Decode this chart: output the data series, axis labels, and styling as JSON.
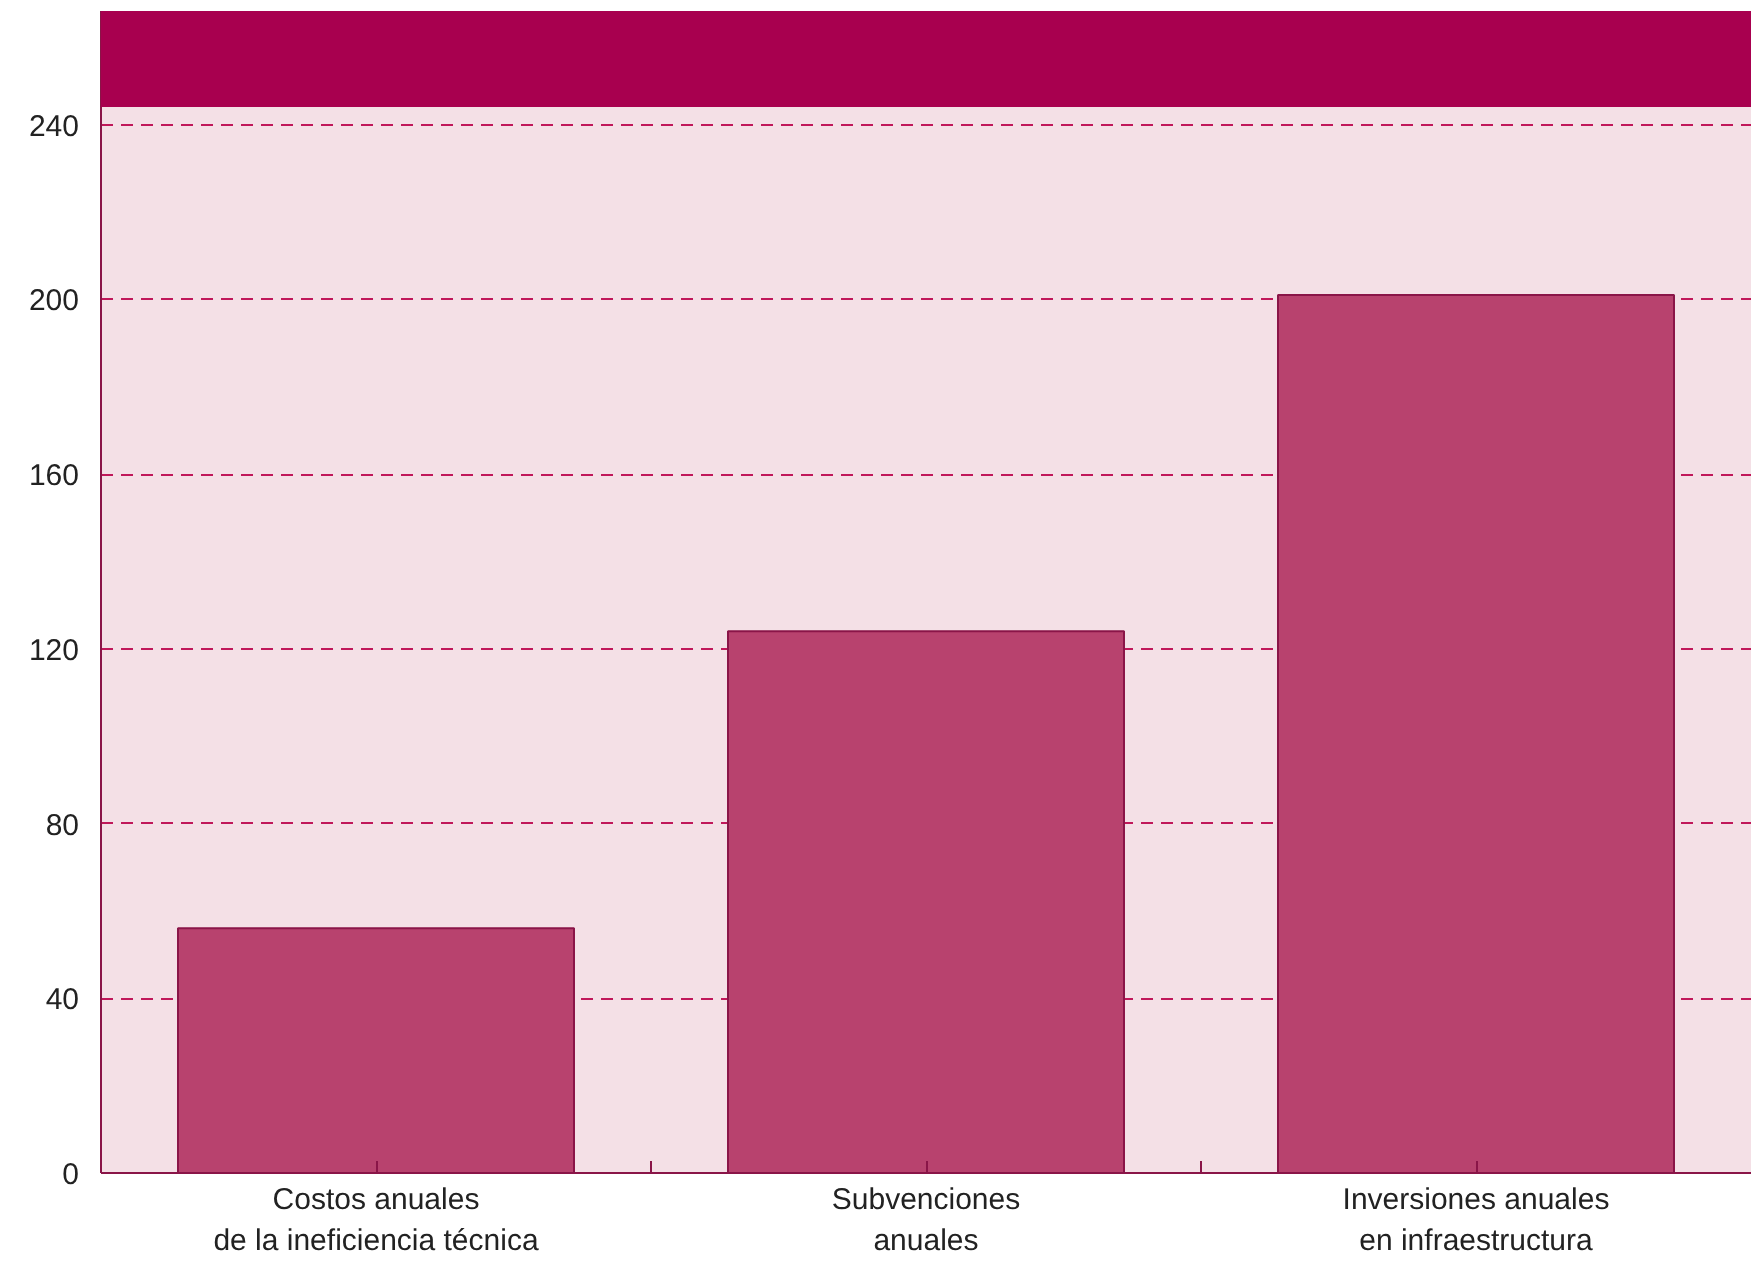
{
  "chart_data": {
    "type": "bar",
    "categories": [
      "Costos anuales\nde la ineficiencia técnica",
      "Subvenciones\nanuales",
      "Inversiones anuales\nen infraestructura"
    ],
    "values": [
      56,
      124,
      201
    ],
    "color": "#b8426e",
    "ylim": [
      0,
      266
    ],
    "yticks": [
      0,
      40,
      80,
      120,
      160,
      200,
      240
    ],
    "grid": "y",
    "bands": [
      {
        "axis": "y",
        "from": 244,
        "to": 266,
        "color": "#a8004f",
        "label": null
      }
    ]
  }
}
